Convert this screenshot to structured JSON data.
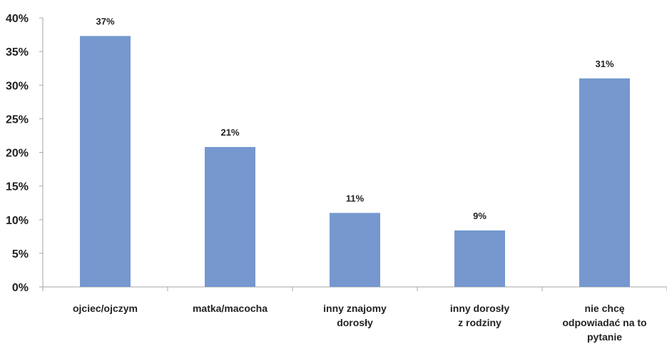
{
  "chart_data": {
    "type": "bar",
    "title": "",
    "xlabel": "",
    "ylabel": "",
    "categories": [
      [
        "ojciec/ojczym"
      ],
      [
        "matka/macocha"
      ],
      [
        "inny znajomy",
        "dorosły"
      ],
      [
        "inny dorosły",
        "z rodziny"
      ],
      [
        "nie chcę",
        "odpowiadać na to",
        "pytanie"
      ]
    ],
    "values": [
      37,
      21,
      11,
      9,
      31
    ],
    "value_labels": [
      "37%",
      "21%",
      "11%",
      "9%",
      "31%"
    ],
    "bar_value_positions": [
      37.3,
      20.8,
      11.0,
      8.4,
      31.0
    ],
    "ylim": [
      0,
      40
    ],
    "yticks": [
      0,
      5,
      10,
      15,
      20,
      25,
      30,
      35,
      40
    ],
    "ytick_labels": [
      "0%",
      "5%",
      "10%",
      "15%",
      "20%",
      "25%",
      "30%",
      "35%",
      "40%"
    ],
    "grid": false,
    "legend": "none",
    "colors": {
      "bar": "#7698cf",
      "axis": "#a6a6a6",
      "text": "#222222"
    }
  }
}
